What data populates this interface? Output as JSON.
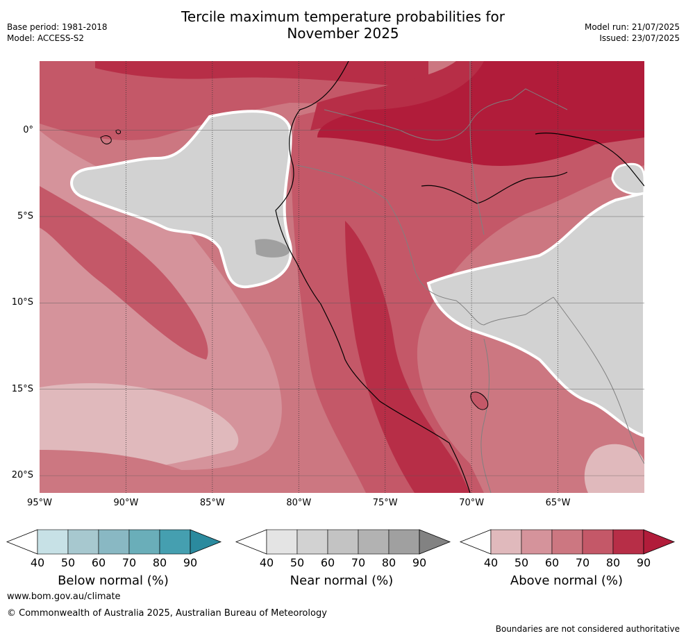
{
  "title": {
    "line1": "Tercile maximum temperature probabilities for",
    "line2": "November 2025"
  },
  "meta_left": {
    "base_period": "Base period: 1981-2018",
    "model": "Model: ACCESS-S2"
  },
  "meta_right": {
    "model_run": "Model run: 21/07/2025",
    "issued": "Issued: 23/07/2025"
  },
  "map": {
    "lat_labels": [
      "0°",
      "5°S",
      "10°S",
      "15°S",
      "20°S"
    ],
    "lon_labels": [
      "95°W",
      "90°W",
      "85°W",
      "80°W",
      "75°W",
      "70°W",
      "65°W"
    ],
    "lat_values": [
      0,
      -5,
      -10,
      -15,
      -20
    ],
    "lon_values": [
      -95,
      -90,
      -85,
      -80,
      -75,
      -70,
      -65
    ],
    "extent": {
      "lon_min": -95,
      "lon_max": -60,
      "lat_min": -21,
      "lat_max": 4
    }
  },
  "legends": [
    {
      "id": "below",
      "title": "Below normal (%)",
      "ticks": [
        "40",
        "50",
        "60",
        "70",
        "80",
        "90"
      ],
      "colors": [
        "#ffffff",
        "#c7e1e6",
        "#a7c8cf",
        "#89b8c3",
        "#6aaeb9",
        "#459fb0",
        "#2b8a9e"
      ]
    },
    {
      "id": "near",
      "title": "Near normal (%)",
      "ticks": [
        "40",
        "50",
        "60",
        "70",
        "80",
        "90"
      ],
      "colors": [
        "#ffffff",
        "#e4e4e4",
        "#d2d2d2",
        "#c3c3c3",
        "#b2b2b2",
        "#a0a0a0",
        "#828282"
      ]
    },
    {
      "id": "above",
      "title": "Above normal (%)",
      "ticks": [
        "40",
        "50",
        "60",
        "70",
        "80",
        "90"
      ],
      "colors": [
        "#ffffff",
        "#e0b9bc",
        "#d5939b",
        "#cc7781",
        "#c45868",
        "#b72e47",
        "#b11c3a"
      ]
    }
  ],
  "footer": {
    "url": "www.bom.gov.au/climate",
    "copyright": "© Commonwealth of Australia 2025, Australian Bureau of Meteorology",
    "disclaimer": "Boundaries are not considered authoritative"
  }
}
